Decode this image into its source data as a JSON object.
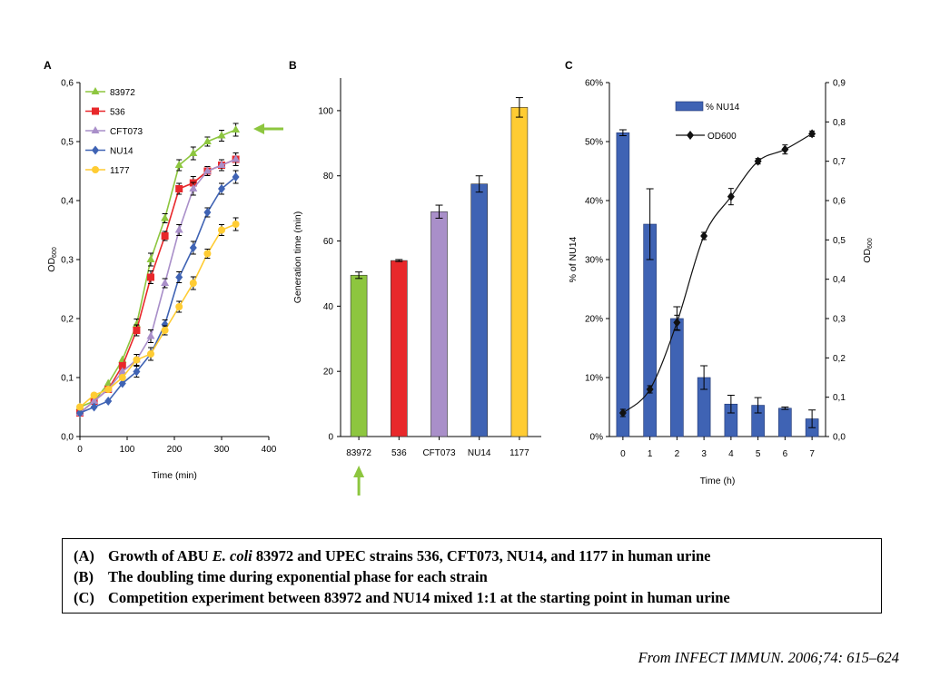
{
  "chart_data": [
    {
      "panel_label": "A",
      "type": "line",
      "xlabel": "Time (min)",
      "ylabel": "OD",
      "ylabel_sub": "600",
      "xlim": [
        0,
        400
      ],
      "ylim": [
        0,
        0.6
      ],
      "x_ticks": [
        "0",
        "100",
        "200",
        "300",
        "400"
      ],
      "y_ticks": [
        "0,0",
        "0,1",
        "0,2",
        "0,3",
        "0,4",
        "0,5",
        "0,6"
      ],
      "legend_position": "top-left",
      "x": [
        0,
        30,
        60,
        90,
        120,
        150,
        180,
        210,
        240,
        270,
        300,
        330
      ],
      "series": [
        {
          "name": "83972",
          "color": "#8dc63f",
          "marker": "triangle",
          "values": [
            0.05,
            0.06,
            0.09,
            0.13,
            0.19,
            0.3,
            0.37,
            0.46,
            0.48,
            0.5,
            0.51,
            0.52
          ]
        },
        {
          "name": "536",
          "color": "#e8282b",
          "marker": "square",
          "values": [
            0.04,
            0.06,
            0.08,
            0.12,
            0.18,
            0.27,
            0.34,
            0.42,
            0.43,
            0.45,
            0.46,
            0.47
          ]
        },
        {
          "name": "CFT073",
          "color": "#a98fc9",
          "marker": "triangle",
          "values": [
            0.04,
            0.06,
            0.08,
            0.11,
            0.13,
            0.17,
            0.26,
            0.35,
            0.42,
            0.45,
            0.46,
            0.47
          ]
        },
        {
          "name": "NU14",
          "color": "#3f63b4",
          "marker": "diamond",
          "values": [
            0.04,
            0.05,
            0.06,
            0.09,
            0.11,
            0.14,
            0.19,
            0.27,
            0.32,
            0.38,
            0.42,
            0.44
          ]
        },
        {
          "name": "1177",
          "color": "#ffcc33",
          "marker": "circle",
          "values": [
            0.05,
            0.07,
            0.08,
            0.1,
            0.13,
            0.14,
            0.18,
            0.22,
            0.26,
            0.31,
            0.35,
            0.36
          ]
        }
      ]
    },
    {
      "panel_label": "B",
      "type": "bar",
      "categories": [
        "83972",
        "536",
        "CFT073",
        "NU14",
        "1177"
      ],
      "values": [
        49.5,
        54,
        69,
        77.5,
        101
      ],
      "errors": [
        1,
        0.3,
        2,
        2.5,
        3
      ],
      "colors": [
        "#8dc63f",
        "#e8282b",
        "#a98fc9",
        "#3f63b4",
        "#ffcc33"
      ],
      "xlabel": "",
      "ylabel": "Generation time (min)",
      "ylim": [
        0,
        110
      ],
      "y_ticks": [
        "0",
        "20",
        "40",
        "60",
        "80",
        "100"
      ]
    },
    {
      "panel_label": "C",
      "type": "bar",
      "categories": [
        "0",
        "1",
        "2",
        "3",
        "4",
        "5",
        "6",
        "7"
      ],
      "xlabel": "Time (h)",
      "ylabel": "% of NU14",
      "y2label": "OD",
      "y2label_sub": "600",
      "ylim": [
        0,
        60
      ],
      "y2lim": [
        0,
        0.9
      ],
      "y_ticks": [
        "0%",
        "10%",
        "20%",
        "30%",
        "40%",
        "50%",
        "60%"
      ],
      "y2_ticks": [
        "0,0",
        "0,1",
        "0,2",
        "0,3",
        "0,4",
        "0,5",
        "0,6",
        "0,7",
        "0,8",
        "0,9"
      ],
      "legend_position": "top-center",
      "series": [
        {
          "name": "% NU14",
          "type": "bar",
          "color": "#3f63b4",
          "values": [
            51.5,
            36,
            20,
            10,
            5.5,
            5.3,
            4.8,
            3
          ],
          "errors": [
            0.5,
            6,
            2,
            2,
            1.5,
            1.3,
            0.2,
            1.5
          ]
        },
        {
          "name": "OD600",
          "type": "line",
          "axis": "right",
          "color": "#111111",
          "values": [
            0.06,
            0.12,
            0.29,
            0.51,
            0.61,
            0.7,
            0.73,
            0.77
          ]
        }
      ]
    }
  ],
  "annotations": {
    "arrow_color": "#8dc63f"
  },
  "caption": {
    "lines": [
      {
        "tag": "(A)",
        "pre": "Growth of ABU ",
        "em": "E. coli",
        "post": " 83972 and UPEC strains 536, CFT073, NU14, and 1177 in human urine"
      },
      {
        "tag": "(B)",
        "pre": "The doubling time during exponential phase for each strain",
        "em": "",
        "post": ""
      },
      {
        "tag": "(C)",
        "pre": "Competition experiment between 83972 and NU14 mixed 1:1 at the starting point in human urine",
        "em": "",
        "post": ""
      }
    ]
  },
  "source": "From INFECT IMMUN. 2006;74: 615–624"
}
